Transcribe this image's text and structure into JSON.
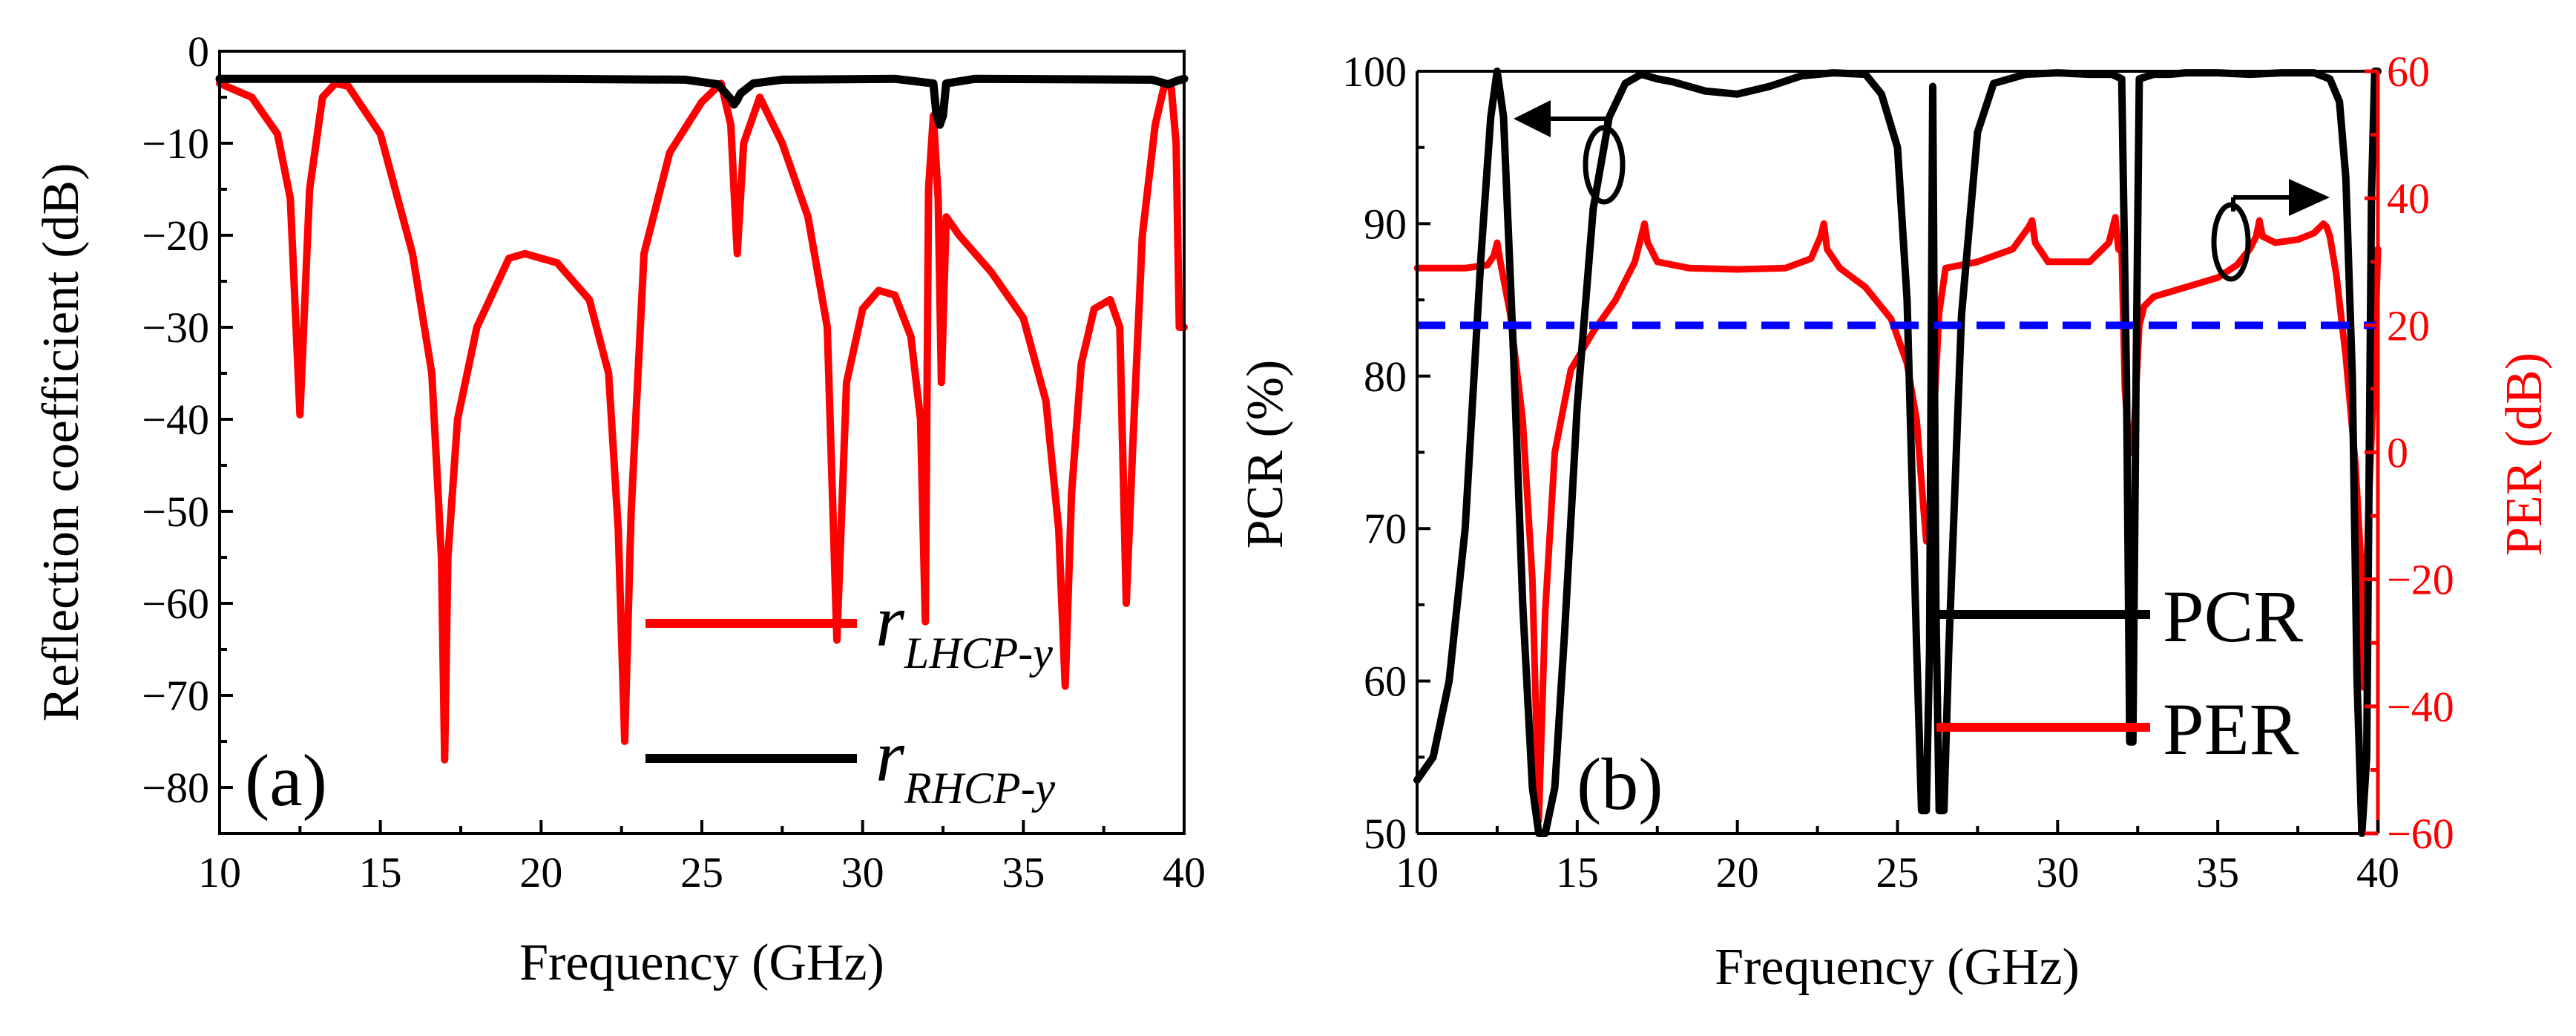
{
  "chart_data": [
    {
      "type": "line",
      "panel_label": "(a)",
      "xlabel": "Frequency (GHz)",
      "ylabel": "Reflection coefficient (dB)",
      "xlim": [
        10,
        40
      ],
      "ylim": [
        -85,
        0
      ],
      "xticks": [
        10,
        15,
        20,
        25,
        30,
        35,
        40
      ],
      "yticks": [
        0,
        -10,
        -20,
        -30,
        -40,
        -50,
        -60,
        -70,
        -80
      ],
      "tick_labels_x": [
        "10",
        "15",
        "20",
        "25",
        "30",
        "35",
        "40"
      ],
      "tick_labels_y": [
        "0",
        "−10",
        "−20",
        "−30",
        "−40",
        "−50",
        "−60",
        "−70",
        "−80"
      ],
      "grid": false,
      "series": [
        {
          "name": "r_LHCP-y",
          "legend_main": "r",
          "legend_sub": "LHCP-y",
          "color": "#ff0000",
          "x": [
            10,
            11,
            11.8,
            12.2,
            12.5,
            12.8,
            13.2,
            13.6,
            14.0,
            15.0,
            16.0,
            16.6,
            16.9,
            17.0,
            17.1,
            17.4,
            18.0,
            19.0,
            19.5,
            20.5,
            21.5,
            22.1,
            22.4,
            22.6,
            22.8,
            23.2,
            24.0,
            25.0,
            25.6,
            25.9,
            26.0,
            26.1,
            26.3,
            26.8,
            27.5,
            28.3,
            28.9,
            29.2,
            29.5,
            30.0,
            30.5,
            31.0,
            31.5,
            31.8,
            31.95,
            32.05,
            32.2,
            32.35,
            32.45,
            32.6,
            33.0,
            34.0,
            35.0,
            35.7,
            36.1,
            36.3,
            36.5,
            36.8,
            37.2,
            37.7,
            38.0,
            38.2,
            38.4,
            38.7,
            39.1,
            39.4,
            39.6,
            39.75,
            39.85,
            40.0
          ],
          "y": [
            -3.5,
            -5,
            -9,
            -16,
            -39.5,
            -15,
            -5,
            -3.5,
            -3.8,
            -9,
            -22,
            -35,
            -55,
            -77,
            -55,
            -40,
            -30,
            -22.5,
            -22,
            -23,
            -27,
            -35,
            -52,
            -75,
            -50,
            -22,
            -11,
            -5.5,
            -3.5,
            -8,
            -15,
            -22,
            -10,
            -5,
            -10,
            -18,
            -30,
            -64,
            -36,
            -28,
            -26,
            -26.5,
            -31,
            -40,
            -62,
            -15,
            -7,
            -16,
            -36,
            -18,
            -20,
            -24,
            -29,
            -38,
            -52,
            -69,
            -48,
            -34,
            -28,
            -27,
            -30,
            -60,
            -43,
            -20,
            -8,
            -3.5,
            -4,
            -10,
            -30,
            -30
          ]
        },
        {
          "name": "r_RHCP-y",
          "legend_main": "r",
          "legend_sub": "RHCP-y",
          "color": "#000000",
          "x": [
            10,
            20,
            24.5,
            25.5,
            25.9,
            26.0,
            26.1,
            26.2,
            26.6,
            27.5,
            31.0,
            32.2,
            32.3,
            32.4,
            32.5,
            32.6,
            33.5,
            39.0,
            39.5,
            39.8,
            40.0
          ],
          "y": [
            -3,
            -3,
            -3.1,
            -3.6,
            -5.2,
            -5.8,
            -5.3,
            -4.6,
            -3.5,
            -3.1,
            -3.0,
            -3.5,
            -7.0,
            -8.0,
            -7.0,
            -3.5,
            -3.0,
            -3.1,
            -3.6,
            -3.2,
            -3.0
          ]
        }
      ]
    },
    {
      "type": "line",
      "panel_label": "(b)",
      "xlabel": "Frequency (GHz)",
      "ylabel": "PCR (%)",
      "y2label": "PER (dB)",
      "xlim": [
        10,
        40
      ],
      "ylim": [
        50,
        100
      ],
      "y2lim": [
        -60,
        60
      ],
      "xticks": [
        10,
        15,
        20,
        25,
        30,
        35,
        40
      ],
      "yticks": [
        50,
        60,
        70,
        80,
        90,
        100
      ],
      "y2ticks": [
        60,
        40,
        20,
        0,
        -20,
        -40,
        -60
      ],
      "tick_labels_x": [
        "10",
        "15",
        "20",
        "25",
        "30",
        "35",
        "40"
      ],
      "tick_labels_y": [
        "50",
        "60",
        "70",
        "80",
        "90",
        "100"
      ],
      "tick_labels_y2": [
        "60",
        "40",
        "20",
        "0",
        "−20",
        "−40",
        "−60"
      ],
      "grid": false,
      "reference_line": {
        "axis": "y2",
        "value": 20,
        "color": "#0000ff",
        "style": "dashed"
      },
      "series": [
        {
          "name": "PCR",
          "axis": "y",
          "color": "#000000",
          "x": [
            10,
            10.5,
            11.0,
            11.5,
            12.0,
            12.3,
            12.5,
            12.7,
            13.0,
            13.3,
            13.6,
            13.8,
            14.0,
            14.3,
            14.6,
            15.0,
            15.5,
            16.0,
            16.5,
            17.0,
            17.5,
            18.0,
            19.0,
            20.0,
            21.0,
            22.0,
            23.0,
            24.0,
            24.5,
            25.0,
            25.3,
            25.6,
            25.75,
            25.9,
            26.0,
            26.1,
            26.2,
            26.3,
            26.45,
            26.6,
            27.0,
            27.5,
            28.0,
            29.0,
            30.0,
            31.0,
            31.7,
            32.0,
            32.15,
            32.25,
            32.35,
            32.45,
            32.55,
            32.7,
            33.0,
            33.5,
            34.0,
            35.0,
            36.0,
            37.0,
            38.0,
            38.5,
            38.8,
            39.0,
            39.2,
            39.35,
            39.5,
            39.65,
            39.8,
            39.9,
            40.0
          ],
          "y": [
            53.5,
            55,
            60,
            70,
            88,
            97,
            100,
            97,
            82,
            65,
            53,
            50,
            50,
            53,
            63,
            78,
            91,
            97,
            99.2,
            99.8,
            99.5,
            99.3,
            98.7,
            98.5,
            99,
            99.7,
            99.9,
            99.8,
            98.5,
            95,
            85,
            62,
            51.5,
            51.5,
            62,
            99,
            65,
            51.5,
            51.5,
            62,
            84,
            96,
            99.2,
            99.8,
            99.9,
            99.8,
            99.8,
            99.5,
            80,
            56,
            56,
            80,
            99.5,
            99.6,
            99.8,
            99.8,
            99.9,
            99.9,
            99.8,
            99.9,
            99.9,
            99.5,
            98,
            93,
            80,
            60,
            50,
            55,
            92,
            100,
            100
          ]
        },
        {
          "name": "PER",
          "axis": "y2",
          "color": "#ff0000",
          "x": [
            10,
            11.5,
            12.2,
            12.4,
            12.5,
            12.6,
            12.9,
            13.3,
            13.6,
            13.8,
            14.0,
            14.3,
            14.8,
            15.5,
            16.2,
            16.8,
            17.0,
            17.1,
            17.2,
            17.5,
            18.5,
            20.0,
            21.5,
            22.3,
            22.6,
            22.7,
            22.8,
            23.2,
            24.0,
            24.8,
            25.3,
            25.6,
            25.8,
            25.9,
            26.0,
            26.1,
            26.3,
            26.5,
            27.5,
            28.6,
            29.1,
            29.2,
            29.3,
            29.7,
            31.0,
            31.6,
            31.8,
            31.9,
            32.0,
            32.1,
            32.2,
            32.3,
            32.4,
            32.55,
            32.7,
            33.0,
            34.0,
            35.0,
            35.6,
            36.0,
            36.2,
            36.3,
            36.4,
            36.8,
            37.5,
            38.0,
            38.3,
            38.4,
            38.5,
            38.7,
            39.0,
            39.3,
            39.5,
            39.55,
            39.7,
            39.9,
            40.0
          ],
          "y": [
            29,
            29,
            29.5,
            31,
            33,
            30,
            22,
            5,
            -20,
            -58,
            -25,
            0,
            13,
            19,
            24,
            30,
            34,
            36,
            33,
            30,
            29,
            28.8,
            29,
            30.5,
            34,
            36,
            32,
            29,
            26,
            21,
            14,
            5,
            -8,
            -14,
            -10,
            2,
            22,
            29,
            30,
            32,
            35.5,
            36.5,
            33,
            30,
            30,
            33,
            37,
            32,
            31.5,
            10,
            3,
            0,
            5,
            20,
            23,
            24.5,
            26,
            27.5,
            29.5,
            32,
            34,
            36.5,
            34,
            33,
            33.5,
            34.5,
            36,
            35.5,
            34,
            28,
            15,
            -2,
            -20,
            -37,
            -10,
            15,
            32
          ]
        }
      ]
    }
  ]
}
